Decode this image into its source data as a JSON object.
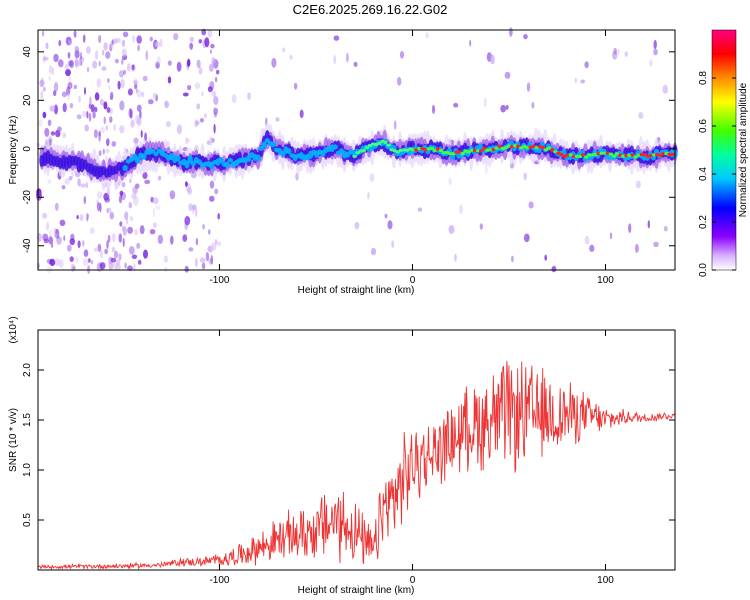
{
  "title": "C2E6.2025.269.16.22.G02",
  "chart_data": [
    {
      "type": "heatmap",
      "name": "spectrogram",
      "xlabel": "Height of straight line (km)",
      "ylabel": "Frequency (Hz)",
      "xlim": [
        -194,
        136
      ],
      "ylim": [
        -50,
        49
      ],
      "xticks": [
        -100,
        0,
        100
      ],
      "yticks": [
        -40,
        -20,
        0,
        20,
        40
      ],
      "ridge": {
        "x": [
          -190,
          -170,
          -160,
          -150,
          -140,
          -130,
          -120,
          -110,
          -100,
          -90,
          -80,
          -75,
          -70,
          -60,
          -50,
          -40,
          -30,
          -20,
          -15,
          -10,
          0,
          10,
          20,
          30,
          40,
          50,
          60,
          70,
          80,
          90,
          100,
          110,
          120,
          136
        ],
        "freq": [
          -4,
          -6,
          -10,
          -8,
          -2,
          -2,
          -5,
          -6,
          -6,
          -5,
          -3,
          4,
          0,
          -3,
          -2,
          0,
          -3,
          2,
          3,
          -1,
          0,
          0,
          -2,
          -1,
          0,
          1,
          1,
          0,
          -3,
          -3,
          -2,
          -3,
          -3,
          -2
        ]
      },
      "colorbar": {
        "label": "Normalized spectral amplitude",
        "ticks": [
          "0.0",
          "0.2",
          "0.4",
          "0.6",
          "0.8"
        ]
      }
    },
    {
      "type": "line",
      "name": "snr",
      "xlabel": "Height of straight line (km)",
      "ylabel": "SNR (10 * v/v)",
      "ylabel_scale": "(x10⁴)",
      "xlim": [
        -194,
        136
      ],
      "ylim": [
        0,
        24000
      ],
      "xticks": [
        -100,
        0,
        100
      ],
      "ytick_labels": [
        "0.5",
        "1.0",
        "1.5",
        "2.0"
      ],
      "yticks": [
        5000,
        10000,
        15000,
        20000
      ],
      "color": "#ee3333",
      "envelope": {
        "x": [
          -194,
          -150,
          -130,
          -120,
          -110,
          -100,
          -90,
          -80,
          -70,
          -60,
          -50,
          -40,
          -35,
          -30,
          -25,
          -20,
          -15,
          -10,
          -5,
          0,
          10,
          20,
          30,
          40,
          50,
          60,
          70,
          80,
          90,
          100,
          110,
          120,
          136
        ],
        "center": [
          300,
          400,
          500,
          800,
          800,
          1000,
          1500,
          2200,
          3000,
          3500,
          4000,
          5000,
          4500,
          4000,
          2500,
          2000,
          6000,
          7000,
          9000,
          10500,
          11500,
          13000,
          14500,
          15000,
          15500,
          15500,
          15500,
          15500,
          15500,
          15000,
          15300,
          15200,
          15500
        ],
        "amp": [
          200,
          300,
          300,
          500,
          500,
          800,
          1200,
          1800,
          2500,
          3000,
          3500,
          4500,
          4500,
          4000,
          3000,
          2500,
          5000,
          5000,
          5000,
          4500,
          4000,
          4000,
          5000,
          6000,
          6500,
          6000,
          5000,
          4000,
          2500,
          1500,
          800,
          600,
          400
        ]
      }
    }
  ]
}
